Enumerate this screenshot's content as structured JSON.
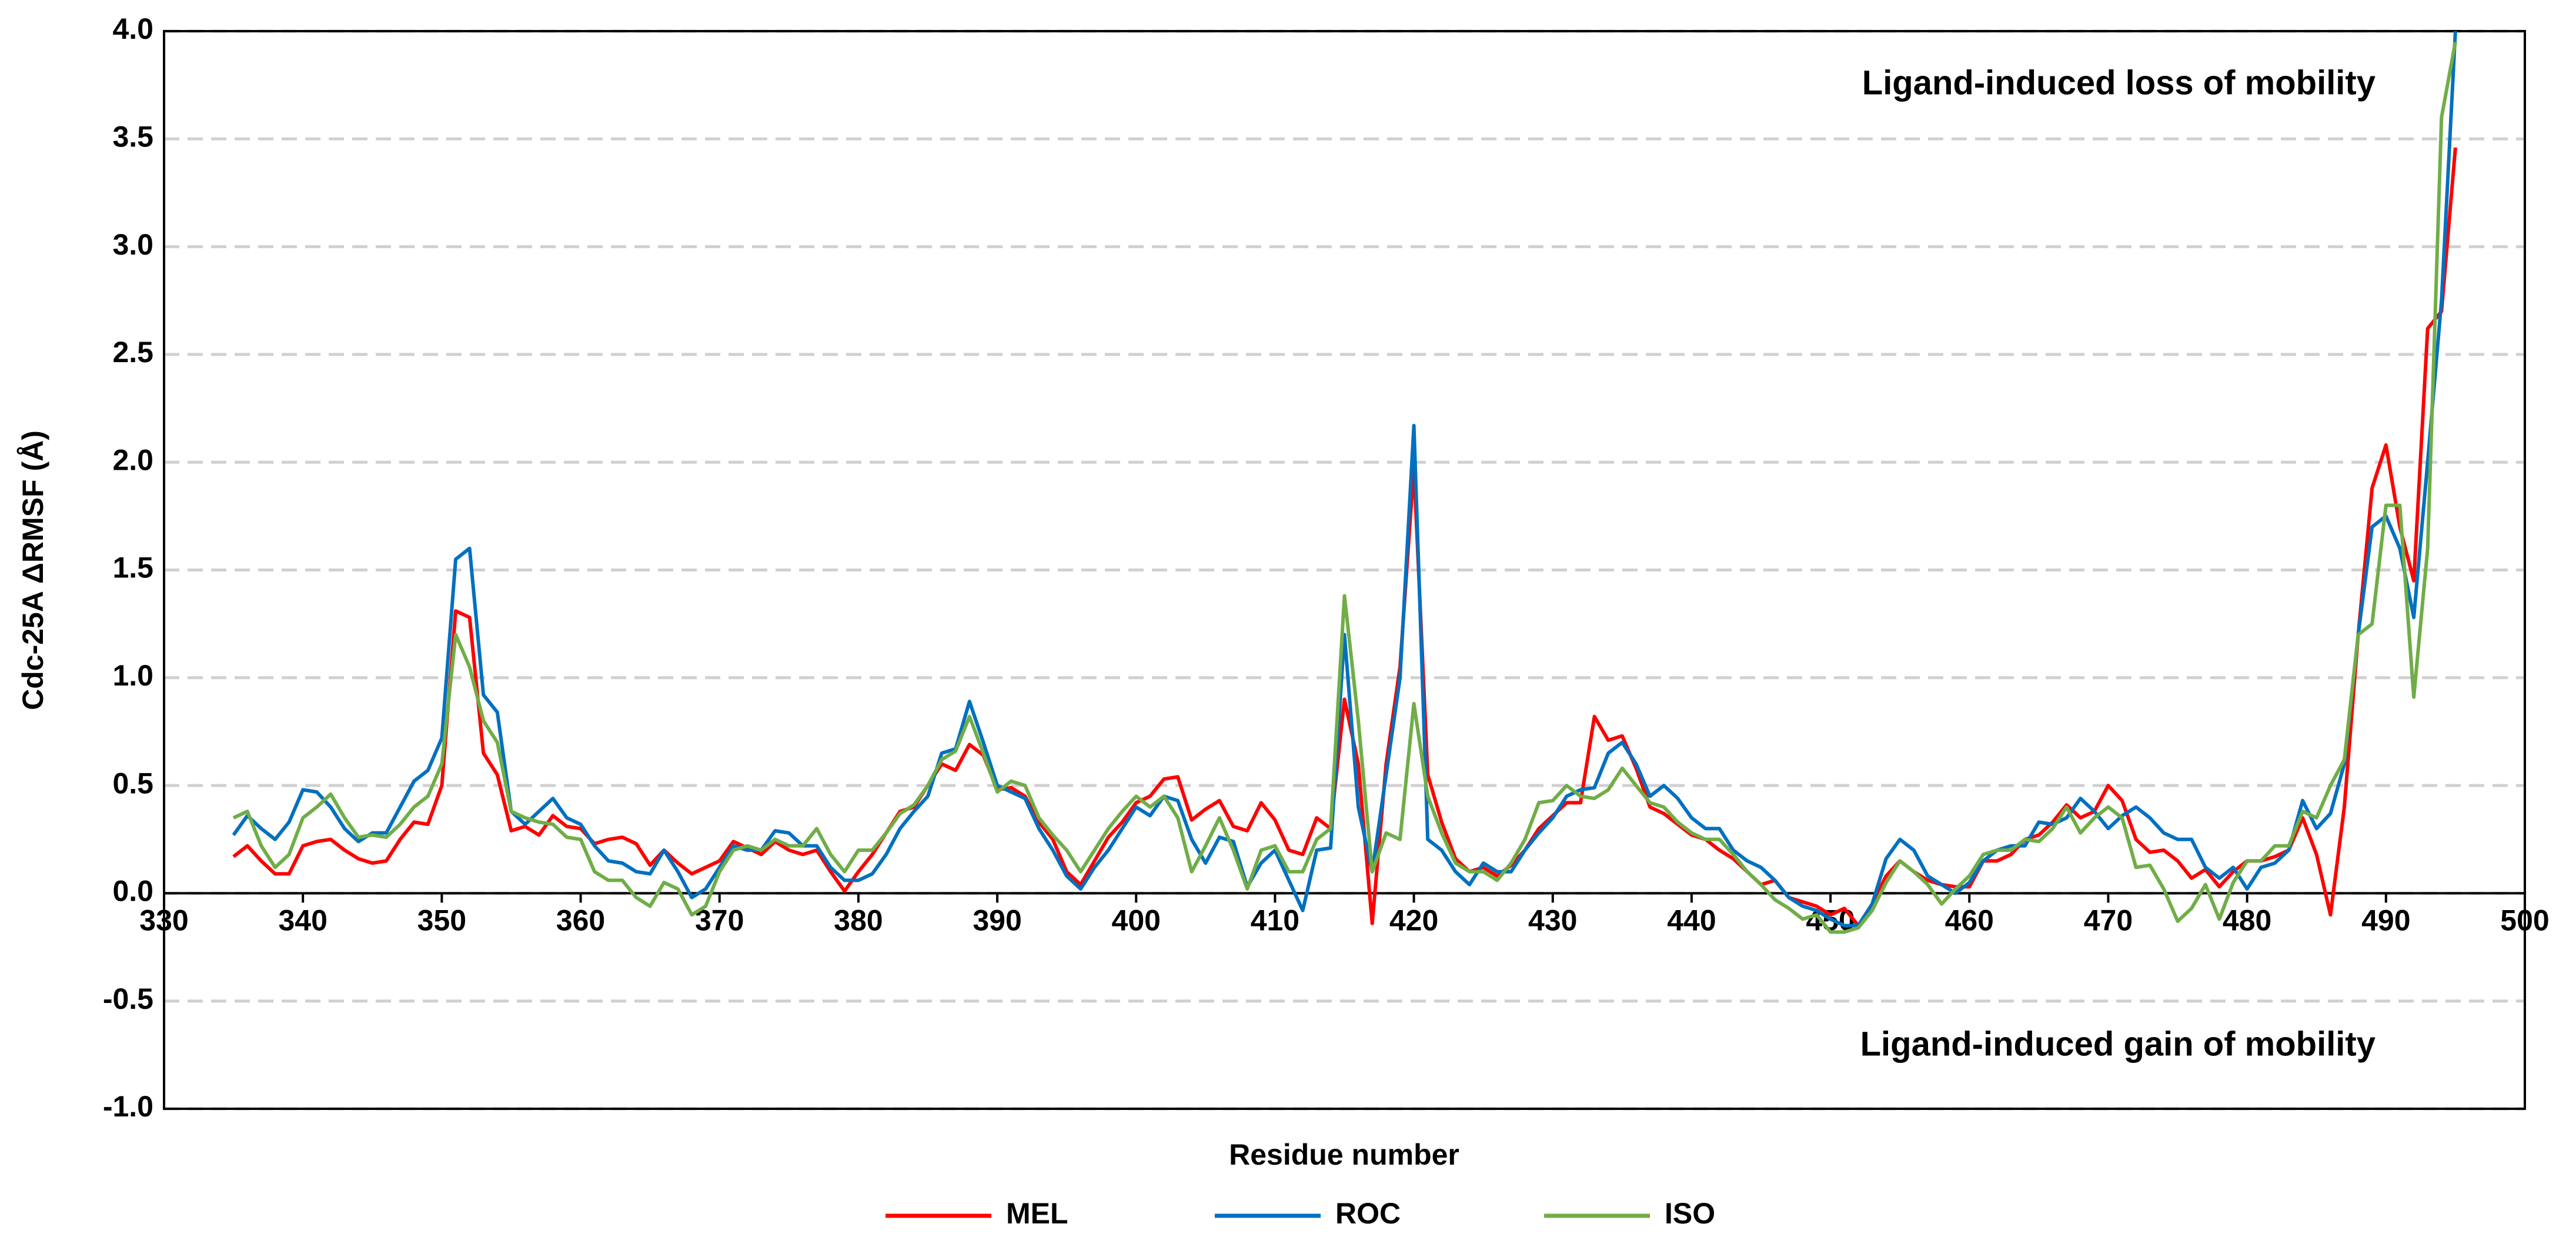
{
  "chart_data": {
    "type": "line",
    "ylabel": "Cdc-25A ΔRMSF (Å)",
    "xlabel": "Residue number",
    "annotations": [
      "Ligand-induced loss of mobility",
      "Ligand-induced gain of mobility"
    ],
    "xlim": [
      330,
      500
    ],
    "xticks": [
      330,
      340,
      350,
      360,
      370,
      380,
      390,
      400,
      410,
      420,
      430,
      440,
      450,
      460,
      470,
      480,
      490,
      500
    ],
    "ylim": [
      -1,
      4
    ],
    "yticks": [
      {
        "value": -1,
        "label": "-1.0"
      },
      -0.5,
      {
        "value": 0,
        "label": "0.0"
      },
      0.5,
      {
        "value": 1,
        "label": "1.0"
      },
      1.5,
      {
        "value": 2,
        "label": "2.0"
      },
      2.5,
      {
        "value": 3,
        "label": "3.0"
      },
      3.5,
      {
        "value": 4,
        "label": "4.0"
      }
    ],
    "grid": true,
    "legend": "bottom",
    "x": [
      335,
      336,
      337,
      338,
      339,
      340,
      341,
      342,
      343,
      344,
      345,
      346,
      347,
      348,
      349,
      350,
      351,
      352,
      353,
      354,
      355,
      356,
      357,
      358,
      359,
      360,
      361,
      362,
      363,
      364,
      365,
      366,
      367,
      368,
      369,
      370,
      371,
      372,
      373,
      374,
      375,
      376,
      377,
      378,
      379,
      380,
      381,
      382,
      383,
      384,
      385,
      386,
      387,
      388,
      389,
      390,
      391,
      392,
      393,
      394,
      395,
      396,
      397,
      398,
      399,
      400,
      401,
      402,
      403,
      404,
      405,
      406,
      407,
      408,
      409,
      410,
      411,
      412,
      413,
      414,
      415,
      416,
      417,
      418,
      419,
      420,
      421,
      422,
      423,
      424,
      425,
      426,
      427,
      428,
      429,
      430,
      431,
      432,
      433,
      434,
      435,
      436,
      437,
      438,
      439,
      440,
      441,
      442,
      443,
      444,
      445,
      446,
      447,
      448,
      449,
      450,
      451,
      452,
      453,
      454,
      455,
      456,
      457,
      458,
      459,
      460,
      461,
      462,
      463,
      464,
      465,
      466,
      467,
      468,
      469,
      470,
      471,
      472,
      473,
      474,
      475,
      476,
      477,
      478,
      479,
      480,
      481,
      482,
      483,
      484,
      485,
      486,
      487,
      488,
      489,
      490,
      491,
      492,
      493,
      494,
      495
    ],
    "series": [
      {
        "name": "MEL",
        "color": "#ff0000",
        "values": [
          0.17,
          0.22,
          0.15,
          0.09,
          0.09,
          0.22,
          0.24,
          0.25,
          0.2,
          0.16,
          0.14,
          0.15,
          0.25,
          0.33,
          0.32,
          0.5,
          1.31,
          1.28,
          0.65,
          0.55,
          0.29,
          0.31,
          0.27,
          0.36,
          0.31,
          0.3,
          0.23,
          0.25,
          0.26,
          0.23,
          0.13,
          0.2,
          0.14,
          0.09,
          0.12,
          0.15,
          0.24,
          0.21,
          0.18,
          0.24,
          0.2,
          0.18,
          0.2,
          0.1,
          0.01,
          0.1,
          0.18,
          0.28,
          0.38,
          0.4,
          0.5,
          0.6,
          0.57,
          0.69,
          0.64,
          0.48,
          0.49,
          0.45,
          0.33,
          0.25,
          0.1,
          0.04,
          0.15,
          0.26,
          0.33,
          0.42,
          0.45,
          0.53,
          0.54,
          0.34,
          0.39,
          0.43,
          0.31,
          0.29,
          0.42,
          0.34,
          0.2,
          0.18,
          0.35,
          0.3,
          0.9,
          0.6,
          -0.14,
          0.6,
          1.05,
          1.98,
          0.55,
          0.33,
          0.16,
          0.1,
          0.12,
          0.08,
          0.13,
          0.2,
          0.3,
          0.36,
          0.42,
          0.42,
          0.82,
          0.71,
          0.73,
          0.58,
          0.4,
          0.37,
          0.32,
          0.27,
          0.25,
          0.2,
          0.16,
          0.1,
          0.04,
          0.06,
          -0.02,
          -0.04,
          -0.06,
          -0.1,
          -0.07,
          -0.15,
          -0.05,
          0.08,
          0.15,
          0.1,
          0.06,
          0.04,
          0.03,
          0.03,
          0.15,
          0.15,
          0.18,
          0.25,
          0.27,
          0.33,
          0.41,
          0.35,
          0.38,
          0.5,
          0.43,
          0.25,
          0.19,
          0.2,
          0.15,
          0.07,
          0.11,
          0.03,
          0.1,
          0.15,
          0.15,
          0.17,
          0.2,
          0.35,
          0.18,
          -0.1,
          0.4,
          1.2,
          1.88,
          2.08,
          1.7,
          1.45,
          2.62,
          2.7,
          3.46
        ]
      },
      {
        "name": "ROC",
        "color": "#0070c0",
        "values": [
          0.27,
          0.36,
          0.3,
          0.25,
          0.33,
          0.48,
          0.47,
          0.4,
          0.3,
          0.24,
          0.28,
          0.28,
          0.4,
          0.52,
          0.57,
          0.72,
          1.55,
          1.6,
          0.92,
          0.84,
          0.38,
          0.32,
          0.38,
          0.44,
          0.35,
          0.32,
          0.22,
          0.15,
          0.14,
          0.1,
          0.09,
          0.2,
          0.1,
          -0.02,
          0.02,
          0.12,
          0.22,
          0.2,
          0.2,
          0.29,
          0.28,
          0.22,
          0.22,
          0.12,
          0.06,
          0.06,
          0.09,
          0.18,
          0.3,
          0.38,
          0.45,
          0.65,
          0.67,
          0.89,
          0.7,
          0.5,
          0.47,
          0.44,
          0.3,
          0.2,
          0.08,
          0.02,
          0.12,
          0.2,
          0.3,
          0.4,
          0.36,
          0.45,
          0.43,
          0.25,
          0.14,
          0.26,
          0.24,
          0.03,
          0.14,
          0.2,
          0.06,
          -0.08,
          0.2,
          0.21,
          1.2,
          0.4,
          0.1,
          0.55,
          1.0,
          2.17,
          0.25,
          0.2,
          0.1,
          0.04,
          0.14,
          0.1,
          0.1,
          0.2,
          0.28,
          0.35,
          0.45,
          0.48,
          0.49,
          0.65,
          0.7,
          0.6,
          0.45,
          0.5,
          0.44,
          0.35,
          0.3,
          0.3,
          0.2,
          0.15,
          0.12,
          0.06,
          -0.02,
          -0.06,
          -0.08,
          -0.12,
          -0.15,
          -0.15,
          -0.05,
          0.16,
          0.25,
          0.2,
          0.08,
          0.04,
          0.0,
          0.05,
          0.15,
          0.2,
          0.22,
          0.22,
          0.33,
          0.32,
          0.35,
          0.44,
          0.38,
          0.3,
          0.36,
          0.4,
          0.35,
          0.28,
          0.25,
          0.25,
          0.12,
          0.07,
          0.12,
          0.02,
          0.12,
          0.14,
          0.2,
          0.43,
          0.3,
          0.37,
          0.6,
          1.2,
          1.7,
          1.75,
          1.6,
          1.28,
          2.0,
          2.75,
          4.0
        ]
      },
      {
        "name": "ISO",
        "color": "#70ad47",
        "values": [
          0.35,
          0.38,
          0.22,
          0.12,
          0.18,
          0.35,
          0.4,
          0.46,
          0.35,
          0.26,
          0.27,
          0.26,
          0.32,
          0.4,
          0.45,
          0.6,
          1.2,
          1.05,
          0.8,
          0.7,
          0.38,
          0.35,
          0.33,
          0.32,
          0.26,
          0.25,
          0.1,
          0.06,
          0.06,
          -0.02,
          -0.06,
          0.05,
          0.02,
          -0.1,
          -0.06,
          0.1,
          0.2,
          0.22,
          0.2,
          0.25,
          0.22,
          0.22,
          0.3,
          0.18,
          0.1,
          0.2,
          0.2,
          0.28,
          0.37,
          0.41,
          0.5,
          0.62,
          0.66,
          0.82,
          0.65,
          0.47,
          0.52,
          0.5,
          0.35,
          0.27,
          0.2,
          0.1,
          0.2,
          0.3,
          0.38,
          0.45,
          0.4,
          0.45,
          0.35,
          0.1,
          0.22,
          0.35,
          0.2,
          0.02,
          0.2,
          0.22,
          0.1,
          0.1,
          0.25,
          0.3,
          1.38,
          0.8,
          0.1,
          0.28,
          0.25,
          0.88,
          0.45,
          0.28,
          0.14,
          0.1,
          0.1,
          0.06,
          0.14,
          0.25,
          0.42,
          0.43,
          0.5,
          0.45,
          0.44,
          0.48,
          0.58,
          0.5,
          0.42,
          0.4,
          0.33,
          0.28,
          0.25,
          0.25,
          0.18,
          0.1,
          0.04,
          -0.03,
          -0.07,
          -0.12,
          -0.1,
          -0.18,
          -0.18,
          -0.16,
          -0.08,
          0.05,
          0.15,
          0.1,
          0.04,
          -0.05,
          0.02,
          0.08,
          0.18,
          0.2,
          0.2,
          0.25,
          0.24,
          0.3,
          0.4,
          0.28,
          0.35,
          0.4,
          0.35,
          0.12,
          0.13,
          0.02,
          -0.13,
          -0.07,
          0.04,
          -0.12,
          0.05,
          0.15,
          0.15,
          0.22,
          0.22,
          0.38,
          0.35,
          0.5,
          0.62,
          1.2,
          1.25,
          1.8,
          1.8,
          0.91,
          1.6,
          3.6,
          3.95
        ]
      }
    ]
  }
}
